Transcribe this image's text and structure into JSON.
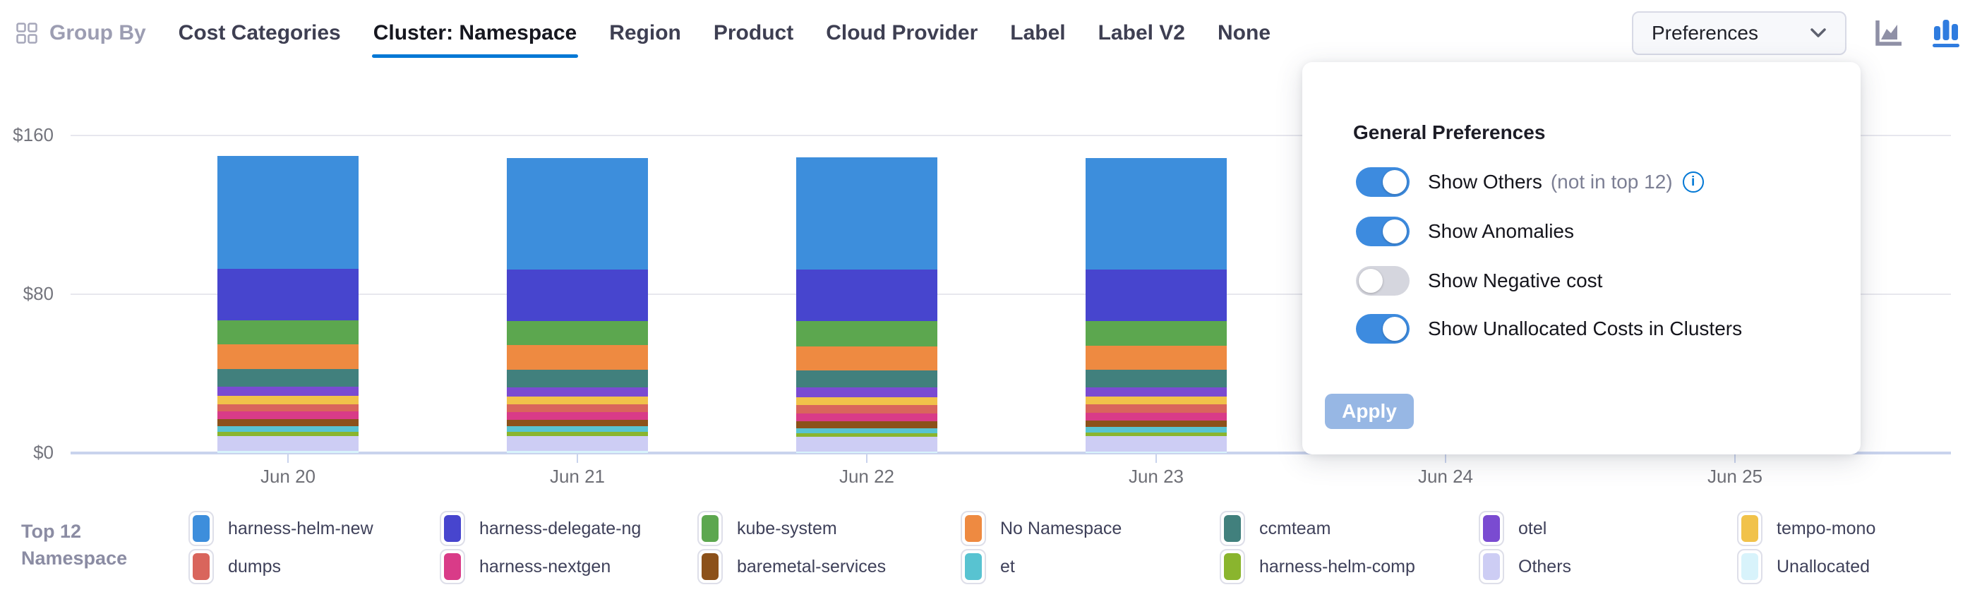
{
  "header": {
    "group_by_label": "Group By",
    "tabs": [
      {
        "label": "Cost Categories",
        "active": false
      },
      {
        "label": "Cluster: Namespace",
        "active": true
      },
      {
        "label": "Region",
        "active": false
      },
      {
        "label": "Product",
        "active": false
      },
      {
        "label": "Cloud Provider",
        "active": false
      },
      {
        "label": "Label",
        "active": false
      },
      {
        "label": "Label V2",
        "active": false
      },
      {
        "label": "None",
        "active": false
      }
    ],
    "preferences_button_label": "Preferences",
    "chart_type_selected": "bar"
  },
  "preferences_panel": {
    "title": "General Preferences",
    "toggles": [
      {
        "label": "Show Others",
        "suffix": "(not in top 12)",
        "has_info_icon": true,
        "on": true
      },
      {
        "label": "Show Anomalies",
        "suffix": "",
        "has_info_icon": false,
        "on": true
      },
      {
        "label": "Show Negative cost",
        "suffix": "",
        "has_info_icon": false,
        "on": false
      },
      {
        "label": "Show Unallocated Costs in Clusters",
        "suffix": "",
        "has_info_icon": false,
        "on": true
      }
    ],
    "apply_label": "Apply"
  },
  "legend": {
    "title_line1": "Top 12",
    "title_line2": "Namespace"
  },
  "chart_data": {
    "type": "bar",
    "stacked": true,
    "title": "",
    "xlabel": "",
    "ylabel": "",
    "categories": [
      "Jun 20",
      "Jun 21",
      "Jun 22",
      "Jun 23",
      "Jun 24",
      "Jun 25"
    ],
    "yticks": [
      0,
      80,
      160
    ],
    "ytick_labels": [
      "$0",
      "$80",
      "$160"
    ],
    "ylim": [
      0,
      160
    ],
    "grid": true,
    "legend_position": "bottom",
    "note_hidden_days": "Jun 24 and Jun 25 columns are covered by the open preferences panel",
    "series": [
      {
        "name": "harness-helm-new",
        "color": "#3D8EDC",
        "values": [
          56.7,
          56.2,
          56.5,
          56.3,
          null,
          null
        ]
      },
      {
        "name": "harness-delegate-ng",
        "color": "#4745CE",
        "values": [
          26.0,
          25.8,
          26.0,
          25.9,
          null,
          null
        ]
      },
      {
        "name": "kube-system",
        "color": "#5CA74F",
        "values": [
          12.2,
          12.3,
          12.8,
          12.5,
          null,
          null
        ]
      },
      {
        "name": "No Namespace",
        "color": "#EE8A41",
        "values": [
          12.3,
          12.2,
          12.1,
          12.2,
          null,
          null
        ]
      },
      {
        "name": "ccmteam",
        "color": "#41807D",
        "values": [
          9.1,
          9.0,
          8.6,
          8.9,
          null,
          null
        ]
      },
      {
        "name": "otel",
        "color": "#7A4BD1",
        "values": [
          4.5,
          4.6,
          5.0,
          4.6,
          null,
          null
        ]
      },
      {
        "name": "tempo-mono",
        "color": "#F1C24A",
        "values": [
          4.1,
          4.0,
          3.9,
          4.0,
          null,
          null
        ]
      },
      {
        "name": "dumps",
        "color": "#D9655C",
        "values": [
          3.8,
          3.9,
          4.3,
          4.0,
          null,
          null
        ]
      },
      {
        "name": "harness-nextgen",
        "color": "#D93B88",
        "values": [
          3.9,
          3.8,
          3.9,
          3.9,
          null,
          null
        ]
      },
      {
        "name": "baremetal-services",
        "color": "#8C511A",
        "values": [
          3.5,
          3.4,
          3.5,
          3.5,
          null,
          null
        ]
      },
      {
        "name": "et",
        "color": "#58C3D1",
        "values": [
          2.7,
          2.8,
          2.5,
          2.6,
          null,
          null
        ]
      },
      {
        "name": "harness-helm-comp",
        "color": "#8AB52E",
        "values": [
          2.2,
          2.1,
          1.7,
          2.0,
          null,
          null
        ]
      },
      {
        "name": "Others",
        "color": "#CDCDF4",
        "values": [
          7.7,
          7.6,
          7.6,
          7.6,
          null,
          null
        ]
      },
      {
        "name": "Unallocated",
        "color": "#D8F3FB",
        "values": [
          0.9,
          0.9,
          0.7,
          0.8,
          null,
          null
        ]
      }
    ]
  }
}
